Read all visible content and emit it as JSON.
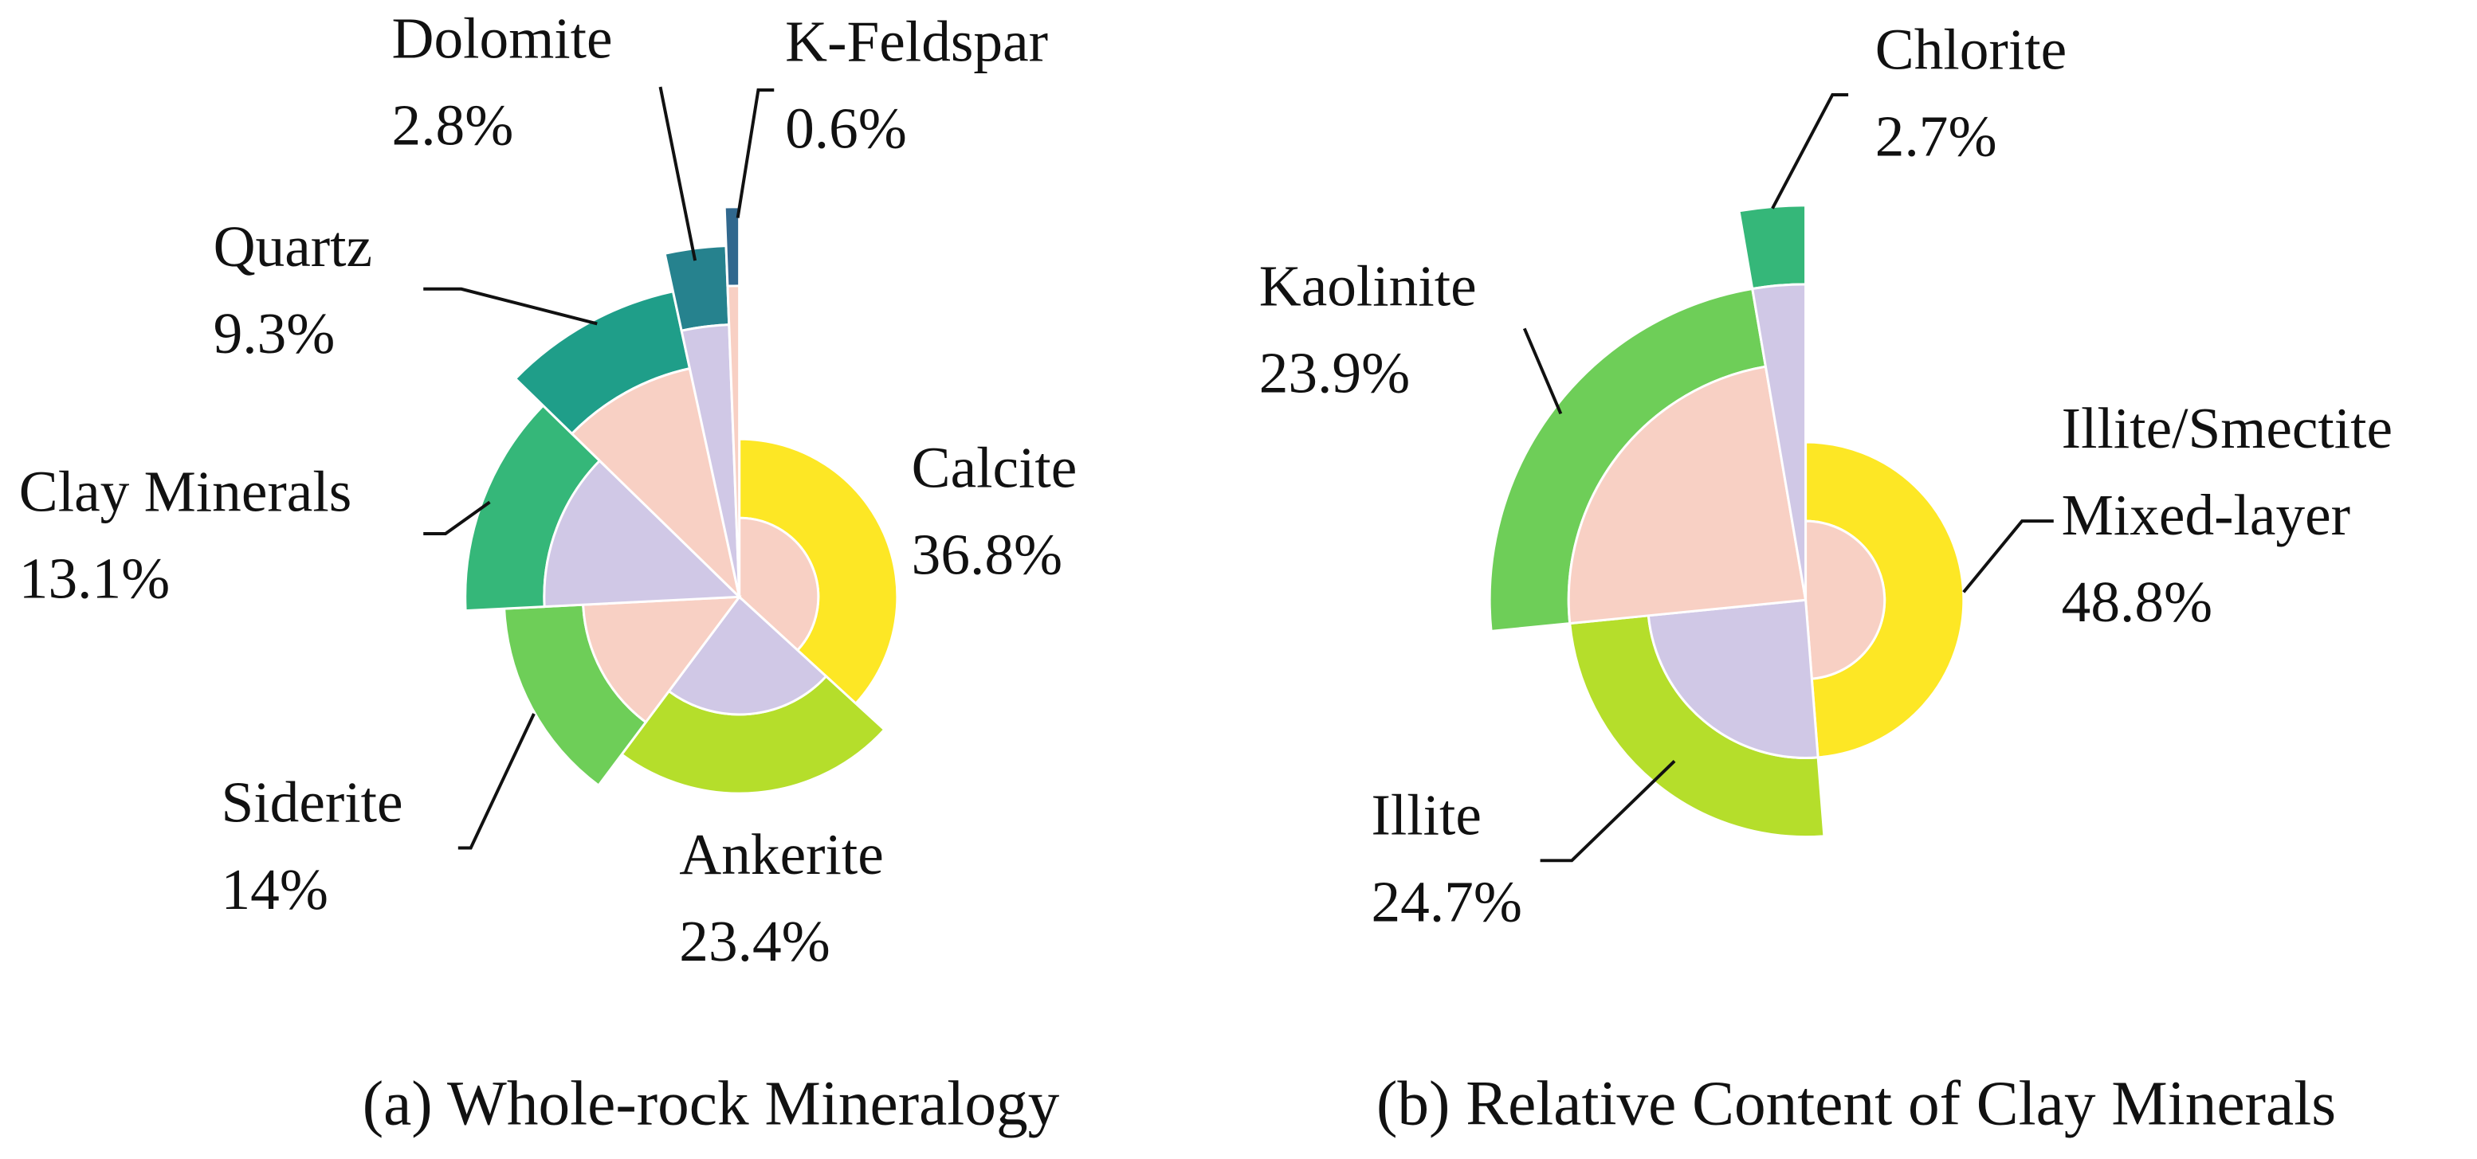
{
  "chart_data": [
    {
      "type": "rose",
      "title": "(a) Whole-rock Mineralogy",
      "categories": [
        "Calcite",
        "Ankerite",
        "Siderite",
        "Clay Minerals",
        "Quartz",
        "Dolomite",
        "K-Feldspar"
      ],
      "values": [
        36.8,
        23.4,
        14,
        13.1,
        9.3,
        2.8,
        0.6
      ],
      "value_labels": [
        "36.8%",
        "23.4%",
        "14%",
        "13.1%",
        "9.3%",
        "2.8%",
        "0.6%"
      ],
      "colors": [
        "#fde725",
        "#b5de2b",
        "#6ece58",
        "#35b779",
        "#1f9e89",
        "#26828e",
        "#31688e"
      ],
      "inner_colors": [
        "#f8d0c4",
        "#d0c8e6"
      ]
    },
    {
      "type": "rose",
      "title": "(b) Relative Content of Clay Minerals",
      "categories": [
        "Illite/Smectite Mixed-layer",
        "Illite",
        "Kaolinite",
        "Chlorite"
      ],
      "values": [
        48.8,
        24.7,
        23.9,
        2.7
      ],
      "value_labels": [
        "48.8%",
        "24.7%",
        "23.9%",
        "2.7%"
      ],
      "colors": [
        "#fde725",
        "#b5de2b",
        "#6ece58",
        "#35b779"
      ],
      "inner_colors": [
        "#f8d0c4",
        "#d0c8e6"
      ]
    }
  ]
}
